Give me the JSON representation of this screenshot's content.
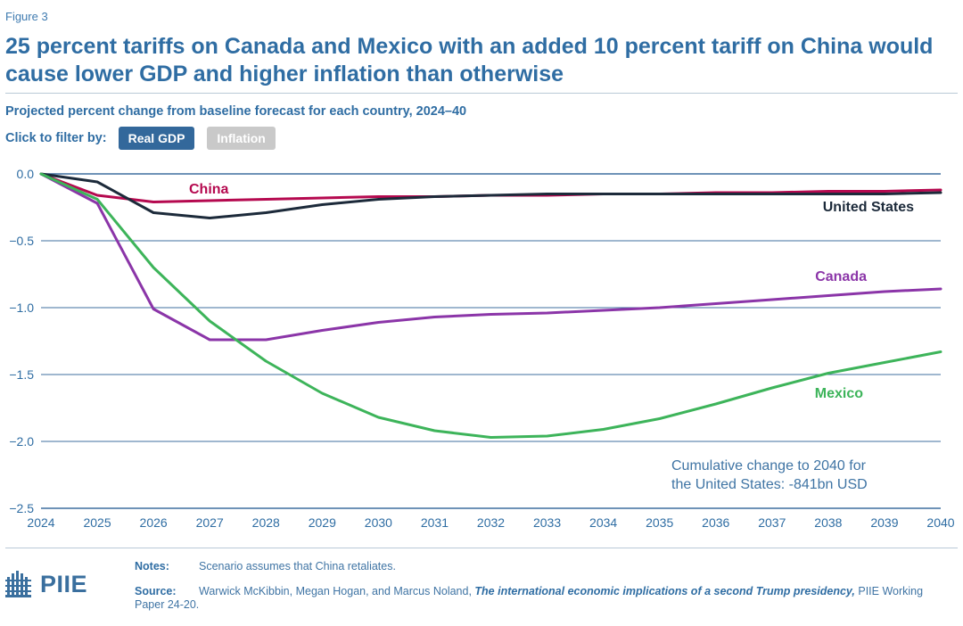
{
  "figure_label": "Figure 3",
  "title": "25 percent tariffs on Canada and Mexico with an added 10 percent tariff on China would cause lower GDP and higher inflation than otherwise",
  "subtitle": "Projected percent change from baseline forecast for each country, 2024–40",
  "filter": {
    "label": "Click to filter by:",
    "options": [
      {
        "label": "Real GDP",
        "active": true
      },
      {
        "label": "Inflation",
        "active": false
      }
    ]
  },
  "colors": {
    "china": "#b5094f",
    "united_states": "#1c2a3a",
    "canada": "#8b35a8",
    "mexico": "#3db45a",
    "grid": "#3f6f9f",
    "axis_text": "#2f6da3"
  },
  "chart_data": {
    "type": "line",
    "x": [
      2024,
      2025,
      2026,
      2027,
      2028,
      2029,
      2030,
      2031,
      2032,
      2033,
      2034,
      2035,
      2036,
      2037,
      2038,
      2039,
      2040
    ],
    "ylim": [
      -2.5,
      0.0
    ],
    "yticks": [
      "0.0",
      "−0.5",
      "−1.0",
      "−1.5",
      "−2.0",
      "−2.5"
    ],
    "ytick_values": [
      0.0,
      -0.5,
      -1.0,
      -1.5,
      -2.0,
      -2.5
    ],
    "xticks": [
      "2024",
      "2025",
      "2026",
      "2027",
      "2028",
      "2029",
      "2030",
      "2031",
      "2032",
      "2033",
      "2034",
      "2035",
      "2036",
      "2037",
      "2038",
      "2039",
      "2040"
    ],
    "grid": true,
    "series": [
      {
        "name": "China",
        "key": "china",
        "values": [
          0.0,
          -0.16,
          -0.21,
          -0.2,
          -0.19,
          -0.18,
          -0.17,
          -0.17,
          -0.16,
          -0.16,
          -0.15,
          -0.15,
          -0.14,
          -0.14,
          -0.13,
          -0.13,
          -0.12
        ]
      },
      {
        "name": "United States",
        "key": "united_states",
        "values": [
          0.0,
          -0.06,
          -0.29,
          -0.33,
          -0.29,
          -0.23,
          -0.19,
          -0.17,
          -0.16,
          -0.15,
          -0.15,
          -0.15,
          -0.15,
          -0.15,
          -0.15,
          -0.15,
          -0.14
        ]
      },
      {
        "name": "Canada",
        "key": "canada",
        "values": [
          0.0,
          -0.22,
          -1.01,
          -1.24,
          -1.24,
          -1.17,
          -1.11,
          -1.07,
          -1.05,
          -1.04,
          -1.02,
          -1.0,
          -0.97,
          -0.94,
          -0.91,
          -0.88,
          -0.86
        ]
      },
      {
        "name": "Mexico",
        "key": "mexico",
        "values": [
          0.0,
          -0.19,
          -0.7,
          -1.1,
          -1.4,
          -1.64,
          -1.82,
          -1.92,
          -1.97,
          -1.96,
          -1.91,
          -1.83,
          -1.72,
          -1.6,
          -1.49,
          -1.41,
          -1.33
        ]
      }
    ],
    "annotation": {
      "line1": "Cumulative change to 2040 for",
      "line2": "the United States: -841bn USD"
    }
  },
  "notes": {
    "notes_label": "Notes:",
    "notes_text": "Scenario assumes that China retaliates.",
    "source_label": "Source:",
    "source_authors": "Warwick McKibbin, Megan Hogan, and Marcus Noland, ",
    "source_title": "The international economic implications of a second Trump presidency,",
    "source_rest": " PIIE Working Paper 24-20."
  },
  "logo": {
    "text": "PIIE",
    "icon": "piie-building-icon"
  }
}
